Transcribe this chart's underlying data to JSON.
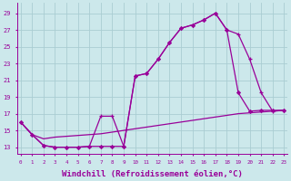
{
  "background_color": "#cce8eb",
  "grid_color": "#aacdd2",
  "line_color": "#990099",
  "xlabel": "Windchill (Refroidissement éolien,°C)",
  "xlabel_fontsize": 6.5,
  "ylabel_ticks": [
    13,
    15,
    17,
    19,
    21,
    23,
    25,
    27,
    29
  ],
  "xticks": [
    0,
    1,
    2,
    3,
    4,
    5,
    6,
    7,
    8,
    9,
    10,
    11,
    12,
    13,
    14,
    15,
    16,
    17,
    18,
    19,
    20,
    21,
    22,
    23
  ],
  "xlim": [
    -0.3,
    23.3
  ],
  "ylim": [
    12.2,
    30.2
  ],
  "curve1_x": [
    0,
    1,
    2,
    3,
    4,
    5,
    6,
    7,
    8,
    9,
    10,
    11,
    12,
    13,
    14,
    15,
    16,
    17,
    18,
    19,
    20,
    21,
    22,
    23
  ],
  "curve1_y": [
    16.0,
    14.5,
    13.2,
    13.0,
    13.0,
    13.0,
    13.1,
    13.1,
    13.1,
    13.1,
    21.5,
    21.8,
    23.5,
    25.5,
    27.2,
    27.6,
    28.2,
    29.0,
    27.0,
    19.5,
    17.3,
    17.4,
    17.4,
    17.4
  ],
  "curve2_x": [
    0,
    1,
    2,
    3,
    4,
    5,
    6,
    7,
    8,
    9,
    10,
    11,
    12,
    13,
    14,
    15,
    16,
    17,
    18,
    19,
    20,
    21,
    22,
    23
  ],
  "curve2_y": [
    16.0,
    14.5,
    13.2,
    13.0,
    13.0,
    13.0,
    13.1,
    16.7,
    16.7,
    13.1,
    21.5,
    21.8,
    23.5,
    25.5,
    27.2,
    27.6,
    28.2,
    29.0,
    27.0,
    26.5,
    23.5,
    19.5,
    17.3,
    17.4
  ],
  "curve3_x": [
    0,
    1,
    2,
    3,
    4,
    5,
    6,
    7,
    8,
    9,
    10,
    11,
    12,
    13,
    14,
    15,
    16,
    17,
    18,
    19,
    20,
    21,
    22,
    23
  ],
  "curve3_y": [
    16.0,
    14.5,
    14.0,
    14.2,
    14.3,
    14.4,
    14.5,
    14.6,
    14.8,
    15.0,
    15.2,
    15.4,
    15.6,
    15.8,
    16.0,
    16.2,
    16.4,
    16.6,
    16.8,
    17.0,
    17.1,
    17.2,
    17.3,
    17.4
  ]
}
